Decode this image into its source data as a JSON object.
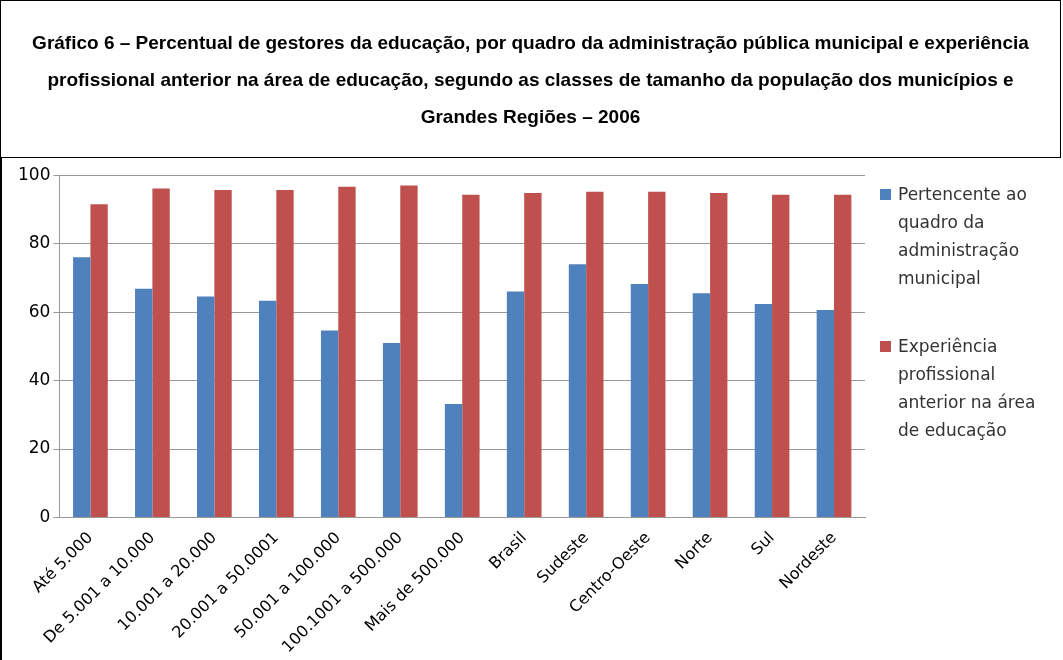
{
  "chart_data": {
    "type": "bar",
    "title": "Gráfico 6 – Percentual de gestores da educação, por quadro da administração pública municipal e experiência profissional anterior na área de educação, segundo as classes de tamanho da população dos municípios e Grandes Regiões – 2006",
    "categories": [
      "Até 5.000",
      "De 5.001 a 10.000",
      "10.001 a 20.000",
      "20.001 a 50.0001",
      "50.001 a 100.000",
      "100.1001 a 500.000",
      "Mais de 500.000",
      "Brasil",
      "Sudeste",
      "Centro-Oeste",
      "Norte",
      "Sul",
      "Nordeste"
    ],
    "series": [
      {
        "name": "Pertencente ao quadro da administração municipal",
        "color": "#4f81bd",
        "values": [
          76,
          66.8,
          64.6,
          63.3,
          54.6,
          51,
          33.2,
          66,
          74,
          68.2,
          65.5,
          62.4,
          60.6
        ]
      },
      {
        "name": "Experiência profissional anterior na área de educação",
        "color": "#c0504d",
        "values": [
          91.5,
          96.1,
          95.7,
          95.7,
          96.6,
          97,
          94.3,
          94.8,
          95.2,
          95.2,
          94.8,
          94.3,
          94.3
        ]
      }
    ],
    "ylim": [
      0,
      100
    ],
    "yticks": [
      0,
      20,
      40,
      60,
      80,
      100
    ],
    "grid": "y",
    "legend": "right"
  }
}
